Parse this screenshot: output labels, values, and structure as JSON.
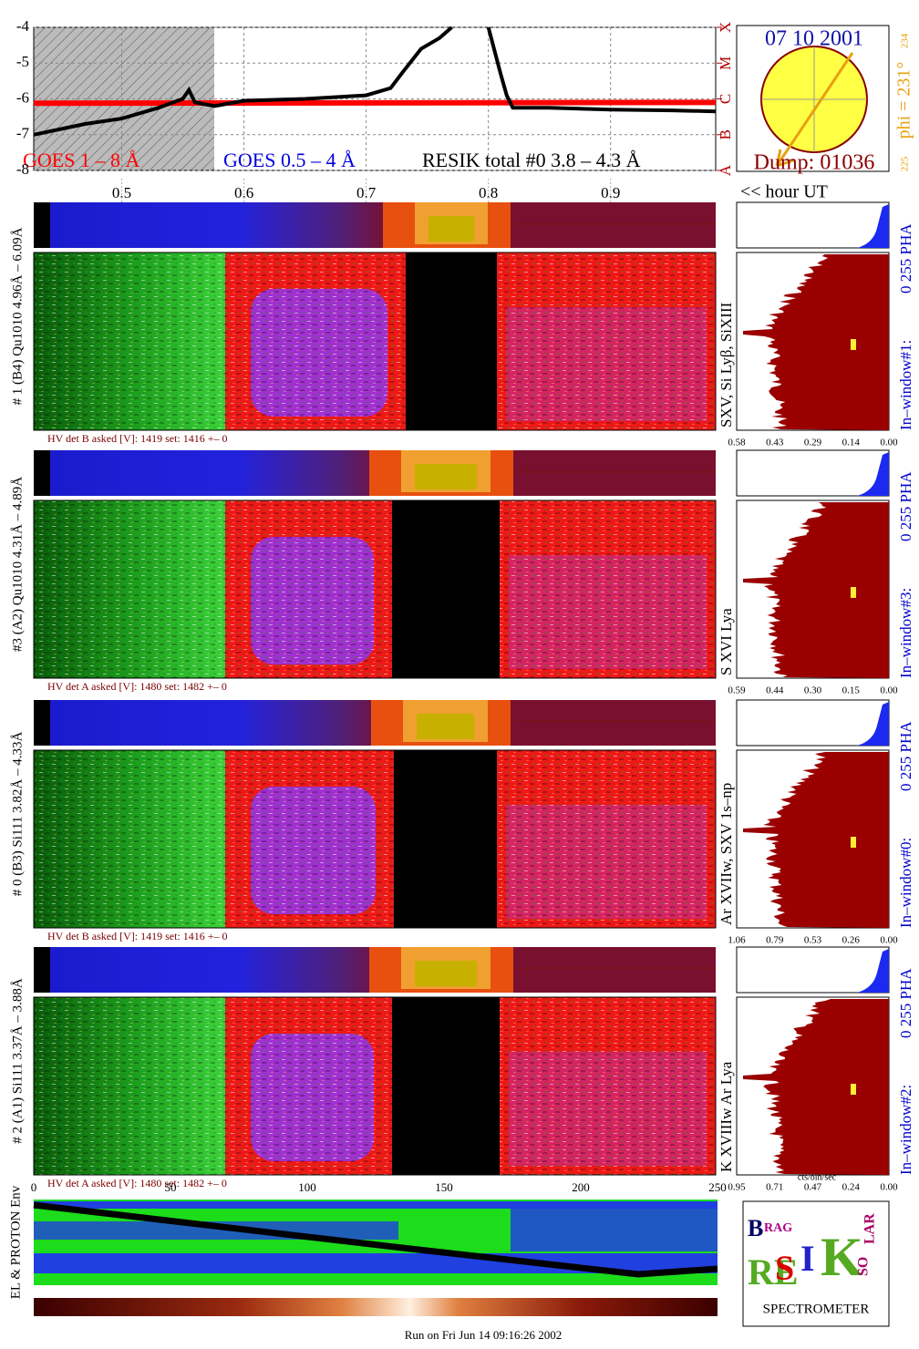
{
  "chart_data": {
    "type": "line",
    "ylim": [
      -8,
      -4
    ],
    "yticks": [
      -4,
      -5,
      -6,
      -7,
      -8
    ],
    "xlim": [
      0.428,
      0.986
    ],
    "xticks": [
      0.5,
      0.6,
      0.7,
      0.8,
      0.9
    ],
    "xlabel": "<< hour UT",
    "grid": true,
    "y2lim": [
      -8,
      -4
    ],
    "y2ticks": [
      {
        "value": -8,
        "label": "A"
      },
      {
        "value": -7,
        "label": "B"
      },
      {
        "value": -6,
        "label": "C"
      },
      {
        "value": -5,
        "label": "M"
      },
      {
        "value": -4,
        "label": "X"
      }
    ],
    "series": [
      {
        "name": "GOES 1 – 8 Å",
        "color": "#ff0000",
        "x": [
          0.428,
          0.986
        ],
        "values": [
          -6.12,
          -6.1
        ]
      },
      {
        "name": "RESIK total #0  3.8 – 4.3 Å",
        "color": "#000000",
        "x": [
          0.428,
          0.47,
          0.5,
          0.53,
          0.55,
          0.555,
          0.56,
          0.576,
          0.6,
          0.65,
          0.7,
          0.72,
          0.73,
          0.745,
          0.76,
          0.77,
          null,
          0.8,
          0.81,
          0.815,
          0.82,
          0.85,
          0.9,
          0.95,
          0.986
        ],
        "values": [
          -7.0,
          -6.7,
          -6.55,
          -6.25,
          -6.0,
          -5.75,
          -6.1,
          -6.2,
          -6.05,
          -6.0,
          -5.9,
          -5.7,
          -5.25,
          -4.6,
          -4.3,
          -4.0,
          null,
          -4.0,
          -5.3,
          -5.9,
          -6.25,
          -6.25,
          -6.3,
          -6.32,
          -6.35
        ]
      }
    ],
    "goes_short_label": "GOES 0.5 – 4 Å"
  },
  "sun": {
    "date": "07 10 2001",
    "dump": "Dump: 01036",
    "phi": "phi = 231°",
    "scale_top": "234",
    "scale_bottom": "225"
  },
  "panels": [
    {
      "label": "# 1 (B4) Qu1010 4.96Å – 6.09Å",
      "lines": "SXV, Si Lyβ, SiXIII",
      "window": "In–window#1:",
      "pha": "0 255  PHA",
      "hv": "HV det B asked [V]:  1419 set:  1416  +–    0",
      "hist_ticks": [
        "0.58",
        "0.43",
        "0.29",
        "0.14",
        "0.00"
      ]
    },
    {
      "label": "#3 (A2) Qu1010  4.31Å – 4.89Å",
      "lines": "S XVI Lya",
      "window": "In–window#3:",
      "pha": "0 255  PHA",
      "hv": "HV det A asked [V]:  1480 set:  1482  +–    0",
      "hist_ticks": [
        "0.59",
        "0.44",
        "0.30",
        "0.15",
        "0.00"
      ]
    },
    {
      "label": "# 0 (B3) Si111  3.82Å – 4.33Å",
      "lines": "Ar XVIIw,  SXV 1s–np",
      "window": "In–window#0:",
      "pha": "0 255  PHA",
      "hv": "HV det B asked [V]:  1419 set:  1416  +–    0",
      "hist_ticks": [
        "1.06",
        "0.79",
        "0.53",
        "0.26",
        "0.00"
      ]
    },
    {
      "label": "# 2 (A1) Si111  3.37Å – 3.88Å",
      "lines": "K XVIIIw  Ar Lya",
      "window": "In–window#2:",
      "pha": "0 255  PHA",
      "hv": "HV det A asked [V]:  1480 set:  1482  +–    0",
      "hist_ticks": [
        "0.95",
        "0.71",
        "0.47",
        "0.24",
        "0.00"
      ]
    }
  ],
  "bin_axis": [
    "0",
    "50",
    "100",
    "150",
    "200",
    "250"
  ],
  "hist_unit": "cts/bin/sec",
  "env_label": "EL & PROTON Env",
  "logo": {
    "letters": [
      "B",
      "RAG",
      "RE",
      "S",
      "I",
      "K",
      "SO",
      "LAR"
    ],
    "name": "SPECTROMETER"
  },
  "footer": "Run on Fri Jun 14 09:16:26 2002"
}
